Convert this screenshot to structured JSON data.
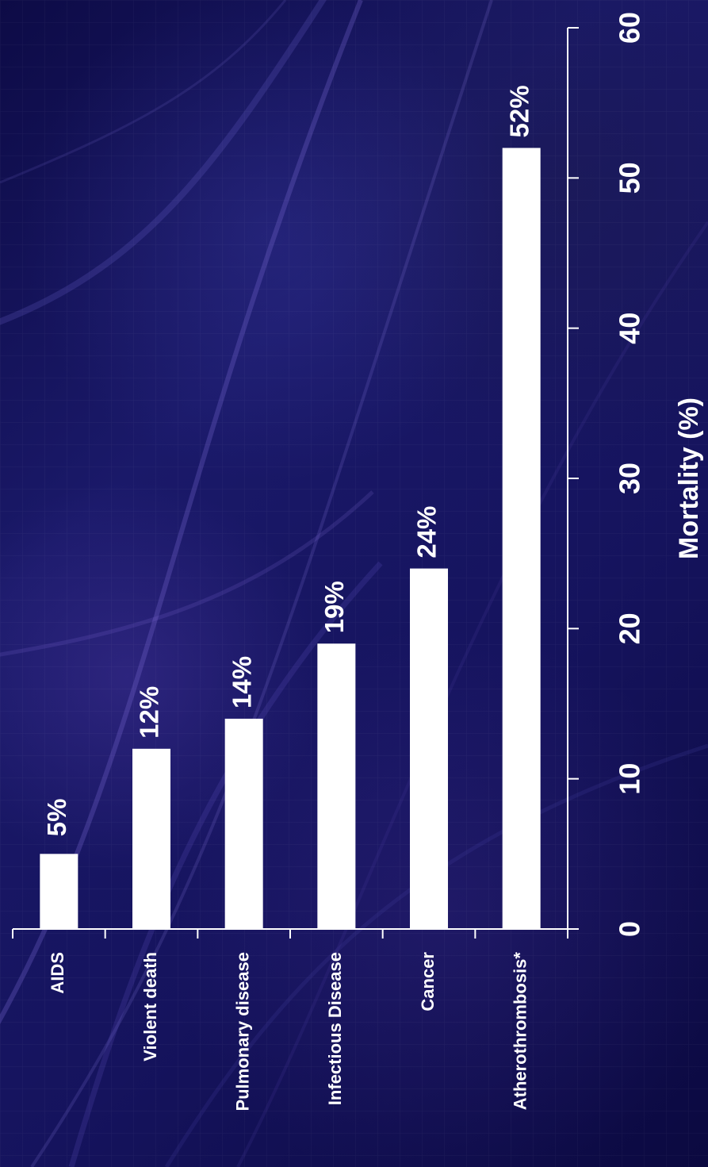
{
  "chart_data": {
    "type": "bar",
    "orientation": "horizontal",
    "categories": [
      "AIDS",
      "Violent death",
      "Pulmonary disease",
      "Infectious Disease",
      "Cancer",
      "Atherothrombosis*"
    ],
    "values": [
      5,
      12,
      14,
      19,
      24,
      52
    ],
    "value_labels": [
      "5%",
      "12%",
      "14%",
      "19%",
      "24%",
      "52%"
    ],
    "ticks": [
      "0",
      "10",
      "20",
      "30",
      "40",
      "50",
      "60"
    ],
    "xlabel": "Mortality (%)",
    "ylabel": "",
    "title": "",
    "xlim": [
      0,
      60
    ],
    "grid": false,
    "colors": {
      "bar": "#ffffff",
      "text": "#ffffff",
      "background": "#100f55"
    }
  }
}
